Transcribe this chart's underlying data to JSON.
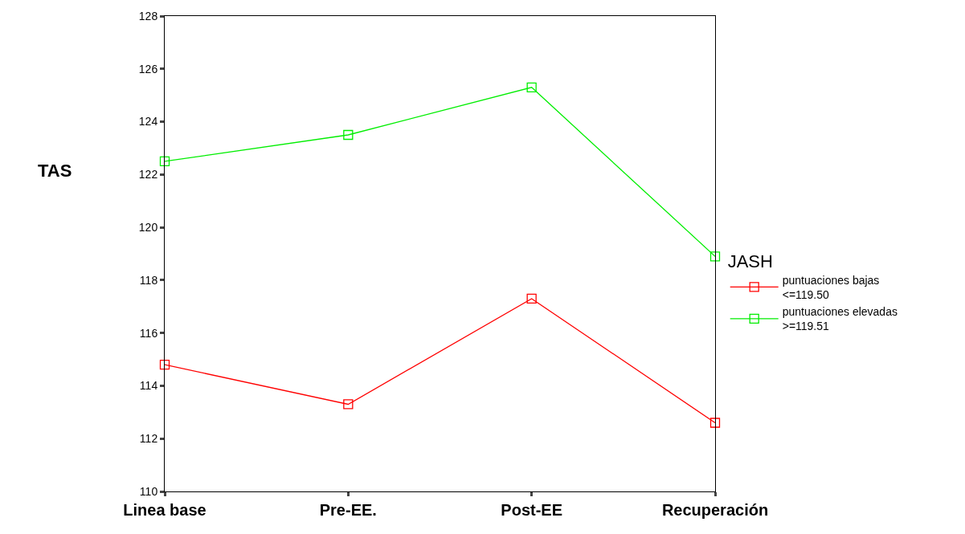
{
  "chart_data": {
    "type": "line",
    "ylabel": "TAS",
    "legend_title": "JASH",
    "categories": [
      "Linea base",
      "Pre-EE.",
      "Post-EE",
      "Recuperación"
    ],
    "series": [
      {
        "name": "puntuaciones bajas\n<=119.50",
        "color": "#ff0000",
        "values": [
          114.8,
          113.3,
          117.3,
          112.6
        ]
      },
      {
        "name": "puntuaciones elevadas\n>=119.51",
        "color": "#00ee00",
        "values": [
          122.5,
          123.5,
          125.3,
          118.9
        ]
      }
    ],
    "ylim": [
      110,
      128
    ],
    "yticks": [
      110,
      112,
      114,
      116,
      118,
      120,
      122,
      124,
      126,
      128
    ],
    "grid": false,
    "legend": "right",
    "marker": "square",
    "line_style": "solid"
  }
}
